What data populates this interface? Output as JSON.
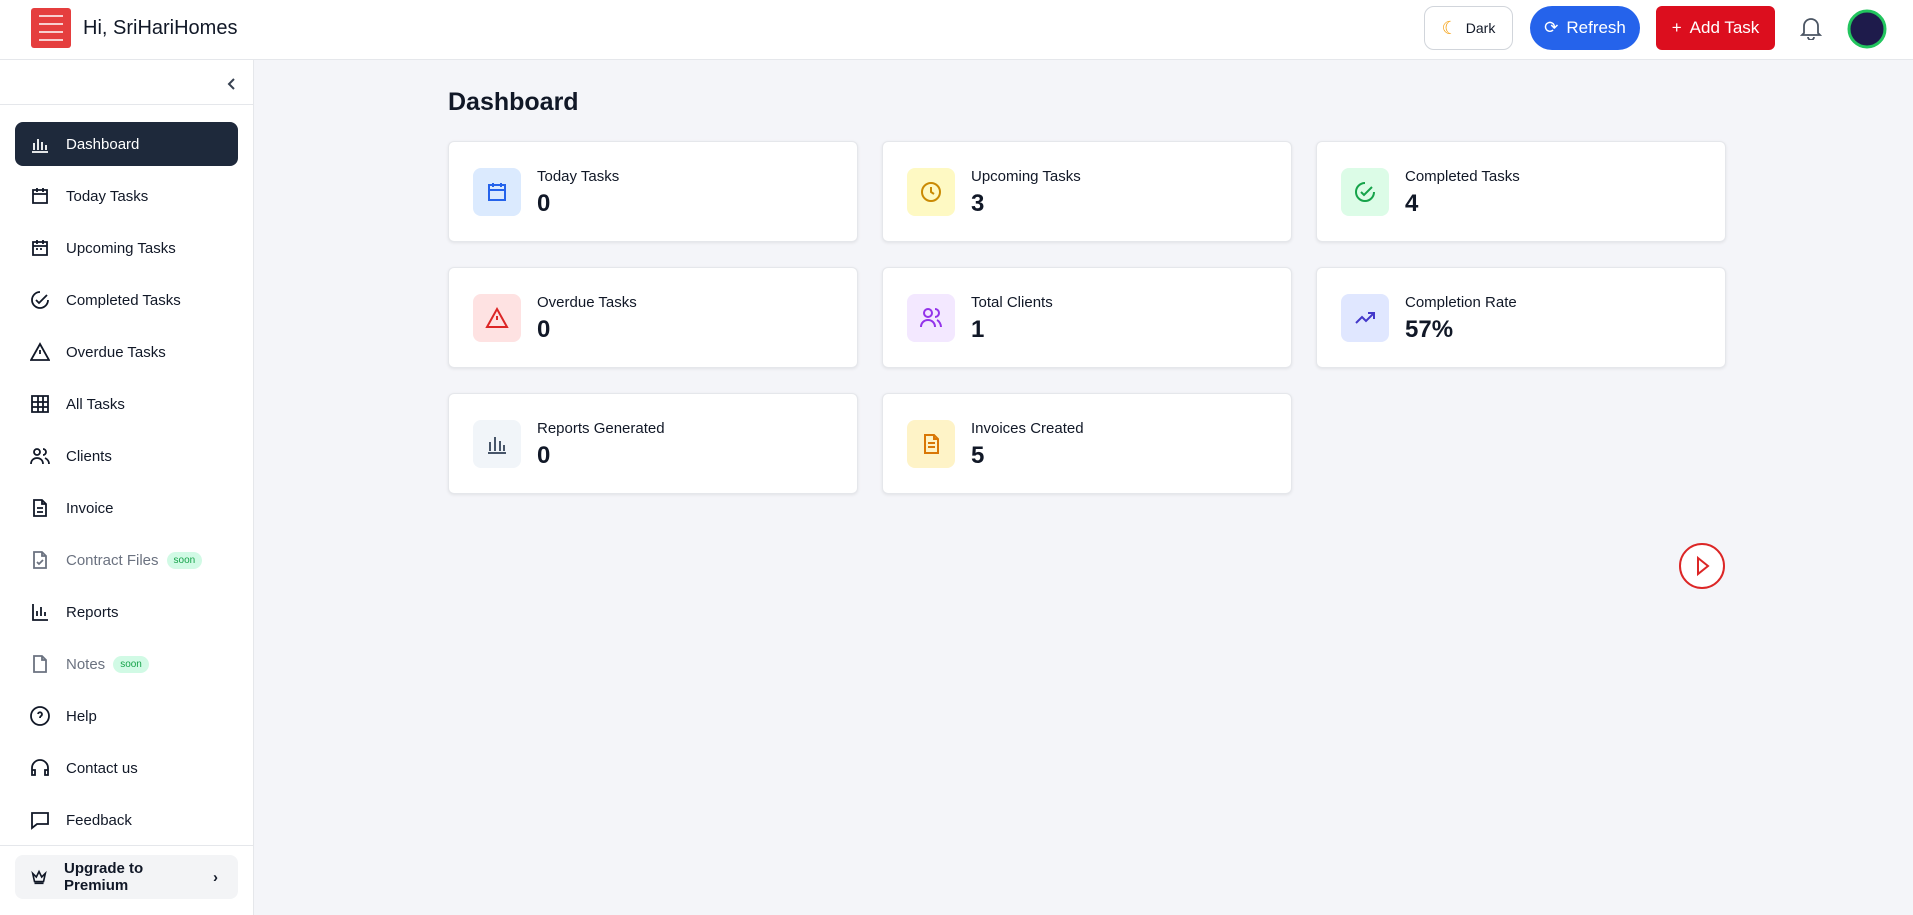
{
  "header": {
    "title": "Hi, SriHariHomes",
    "theme_button": "Dark",
    "refresh_button": "Refresh",
    "add_button": "Add Task"
  },
  "sidebar": {
    "items": [
      {
        "label": "Dashboard"
      },
      {
        "label": "Today Tasks"
      },
      {
        "label": "Upcoming Tasks"
      },
      {
        "label": "Completed Tasks"
      },
      {
        "label": "Overdue Tasks"
      },
      {
        "label": "All Tasks"
      },
      {
        "label": "Clients"
      },
      {
        "label": "Invoice"
      },
      {
        "label": "Contract Files",
        "badge": "soon"
      },
      {
        "label": "Reports"
      },
      {
        "label": "Notes",
        "badge": "soon"
      },
      {
        "label": "Help"
      },
      {
        "label": "Contact us"
      },
      {
        "label": "Feedback"
      }
    ],
    "upgrade": "Upgrade to Premium"
  },
  "main": {
    "title": "Dashboard",
    "cards": [
      {
        "label": "Today Tasks",
        "value": "0"
      },
      {
        "label": "Upcoming Tasks",
        "value": "3"
      },
      {
        "label": "Completed Tasks",
        "value": "4"
      },
      {
        "label": "Overdue Tasks",
        "value": "0"
      },
      {
        "label": "Total Clients",
        "value": "1"
      },
      {
        "label": "Completion Rate",
        "value": "57%"
      },
      {
        "label": "Reports Generated",
        "value": "0"
      },
      {
        "label": "Invoices Created",
        "value": "5"
      }
    ]
  }
}
